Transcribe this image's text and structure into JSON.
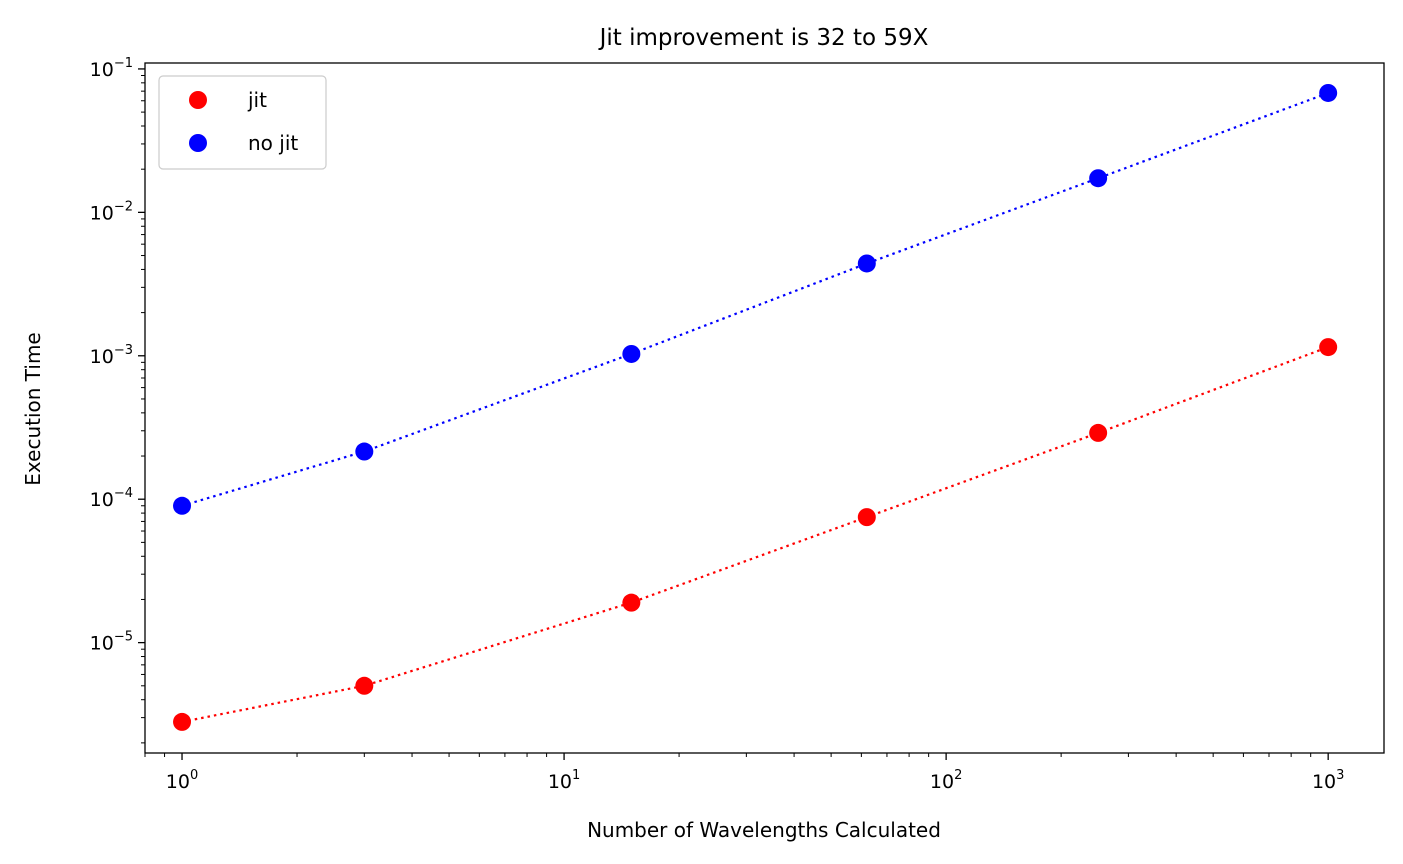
{
  "chart_data": {
    "type": "scatter",
    "title": "Jit improvement is 32 to 59X",
    "xlabel": "Number of Wavelengths Calculated",
    "ylabel": "Execution Time",
    "xscale": "log",
    "yscale": "log",
    "xlim": [
      0.8,
      1400
    ],
    "ylim": [
      1.7e-06,
      0.11
    ],
    "grid": false,
    "legend_position": "top-left",
    "x_ticks": [
      {
        "value": 1,
        "base": "10",
        "exp": "0"
      },
      {
        "value": 10,
        "base": "10",
        "exp": "1"
      },
      {
        "value": 100,
        "base": "10",
        "exp": "2"
      },
      {
        "value": 1000,
        "base": "10",
        "exp": "3"
      }
    ],
    "y_ticks": [
      {
        "value": 1e-05,
        "base": "10",
        "exp": "−5"
      },
      {
        "value": 0.0001,
        "base": "10",
        "exp": "−4"
      },
      {
        "value": 0.001,
        "base": "10",
        "exp": "−3"
      },
      {
        "value": 0.01,
        "base": "10",
        "exp": "−2"
      },
      {
        "value": 0.1,
        "base": "10",
        "exp": "−1"
      }
    ],
    "x": [
      1,
      3,
      15,
      62,
      250,
      1000
    ],
    "series": [
      {
        "name": "jit",
        "color": "#ff0000",
        "values": [
          2.8e-06,
          5e-06,
          1.9e-05,
          7.5e-05,
          0.00029,
          0.00115
        ]
      },
      {
        "name": "no jit",
        "color": "#0000ff",
        "values": [
          9e-05,
          0.000215,
          0.00103,
          0.0044,
          0.0173,
          0.068
        ]
      }
    ]
  }
}
